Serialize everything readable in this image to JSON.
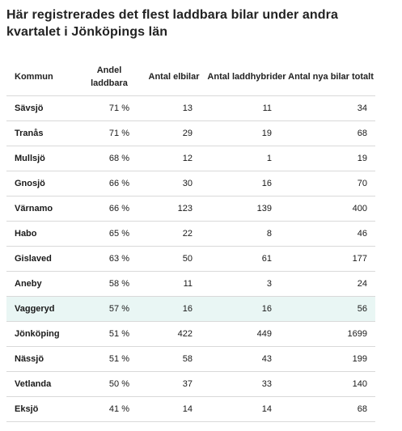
{
  "title": "Här registrerades det flest laddbara bilar under andra kvartalet i Jönköpings län",
  "columns": {
    "kommun": "Kommun",
    "andel": "Andel laddbara",
    "elbilar": "Antal elbilar",
    "laddhybrider": "Antal laddhybrider",
    "totalt": "Antal nya bilar totalt"
  },
  "highlight_color": "#e9f6f4",
  "rows": [
    {
      "kommun": "Sävsjö",
      "andel": "71 %",
      "elbilar": "13",
      "laddhybrider": "11",
      "totalt": "34"
    },
    {
      "kommun": "Tranås",
      "andel": "71 %",
      "elbilar": "29",
      "laddhybrider": "19",
      "totalt": "68"
    },
    {
      "kommun": "Mullsjö",
      "andel": "68 %",
      "elbilar": "12",
      "laddhybrider": "1",
      "totalt": "19"
    },
    {
      "kommun": "Gnosjö",
      "andel": "66 %",
      "elbilar": "30",
      "laddhybrider": "16",
      "totalt": "70"
    },
    {
      "kommun": "Värnamo",
      "andel": "66 %",
      "elbilar": "123",
      "laddhybrider": "139",
      "totalt": "400"
    },
    {
      "kommun": "Habo",
      "andel": "65 %",
      "elbilar": "22",
      "laddhybrider": "8",
      "totalt": "46"
    },
    {
      "kommun": "Gislaved",
      "andel": "63 %",
      "elbilar": "50",
      "laddhybrider": "61",
      "totalt": "177"
    },
    {
      "kommun": "Aneby",
      "andel": "58 %",
      "elbilar": "11",
      "laddhybrider": "3",
      "totalt": "24"
    },
    {
      "kommun": "Vaggeryd",
      "andel": "57 %",
      "elbilar": "16",
      "laddhybrider": "16",
      "totalt": "56",
      "highlighted": true
    },
    {
      "kommun": "Jönköping",
      "andel": "51 %",
      "elbilar": "422",
      "laddhybrider": "449",
      "totalt": "1699"
    },
    {
      "kommun": "Nässjö",
      "andel": "51 %",
      "elbilar": "58",
      "laddhybrider": "43",
      "totalt": "199"
    },
    {
      "kommun": "Vetlanda",
      "andel": "50 %",
      "elbilar": "37",
      "laddhybrider": "33",
      "totalt": "140"
    },
    {
      "kommun": "Eksjö",
      "andel": "41 %",
      "elbilar": "14",
      "laddhybrider": "14",
      "totalt": "68"
    }
  ]
}
